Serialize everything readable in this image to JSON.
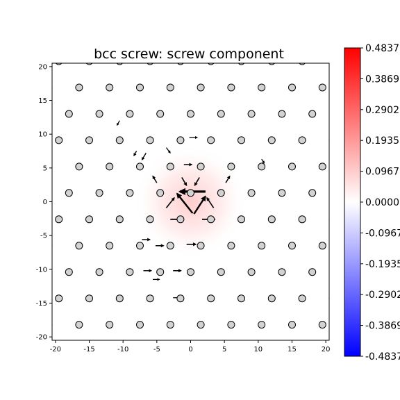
{
  "chart_data": {
    "type": "heatmap",
    "title": "bcc screw: screw component",
    "xlabel": "",
    "ylabel": "",
    "xlim": [
      -20.5,
      20.5
    ],
    "ylim": [
      -20.5,
      20.5
    ],
    "xticks": [
      -20,
      -15,
      -10,
      -5,
      0,
      5,
      10,
      15,
      20
    ],
    "yticks": [
      -20,
      -15,
      -10,
      -5,
      0,
      5,
      10,
      15,
      20
    ],
    "grid": false,
    "colormap": "bwr",
    "colorbar": {
      "range": [
        -0.4837,
        0.4837
      ],
      "ticks": [
        {
          "value": 0.4837,
          "label": "0.4837"
        },
        {
          "value": 0.3869,
          "label": "0.3869"
        },
        {
          "value": 0.2902,
          "label": "0.2902"
        },
        {
          "value": 0.1935,
          "label": "0.1935"
        },
        {
          "value": 0.0967,
          "label": "0.0967"
        },
        {
          "value": 0.0,
          "label": "0.0000"
        },
        {
          "value": -0.0967,
          "label": "-0.0967"
        },
        {
          "value": -0.1935,
          "label": "-0.1935"
        },
        {
          "value": -0.2902,
          "label": "-0.2902"
        },
        {
          "value": -0.3869,
          "label": "-0.3869"
        },
        {
          "value": -0.4837,
          "label": "-0.4837"
        }
      ]
    },
    "field": {
      "description_free": true,
      "peak_value": 0.09,
      "center": [
        0,
        0
      ],
      "decay_radius": 6
    },
    "atoms": {
      "row_spacing": 3.9,
      "column_spacing": 4.5,
      "row_offset_step": 1.5,
      "x_range": [
        -20.5,
        20.5
      ],
      "y_range": [
        -20.5,
        20.5
      ],
      "reference": [
        0,
        1.3
      ]
    },
    "arrows": [
      {
        "from": [
          2.2,
          1.5
        ],
        "to": [
          -1.6,
          1.5
        ],
        "weight": 1.0
      },
      {
        "from": [
          0.3,
          -1.7
        ],
        "to": [
          -2.0,
          1.2
        ],
        "weight": 0.7
      },
      {
        "from": [
          0.5,
          -1.8
        ],
        "to": [
          2.2,
          0.8
        ],
        "weight": 0.7
      },
      {
        "from": [
          -3.0,
          -2.6
        ],
        "to": [
          -1.2,
          -2.6
        ],
        "weight": 0.45
      },
      {
        "from": [
          1.7,
          -2.6
        ],
        "to": [
          3.6,
          -2.6
        ],
        "weight": 0.45
      },
      {
        "from": [
          -3.6,
          -0.9
        ],
        "to": [
          -2.4,
          0.6
        ],
        "weight": 0.35
      },
      {
        "from": [
          3.4,
          -0.9
        ],
        "to": [
          2.4,
          0.6
        ],
        "weight": 0.35
      },
      {
        "from": [
          -1.3,
          3.6
        ],
        "to": [
          -0.6,
          2.4
        ],
        "weight": 0.35
      },
      {
        "from": [
          1.3,
          3.6
        ],
        "to": [
          0.6,
          2.4
        ],
        "weight": 0.35
      },
      {
        "from": [
          -1.0,
          5.5
        ],
        "to": [
          0.2,
          5.5
        ],
        "weight": 0.3
      },
      {
        "from": [
          -5.0,
          2.8
        ],
        "to": [
          -5.6,
          3.8
        ],
        "weight": 0.3
      },
      {
        "from": [
          5.2,
          2.8
        ],
        "to": [
          5.8,
          3.8
        ],
        "weight": 0.3
      },
      {
        "from": [
          -0.2,
          9.5
        ],
        "to": [
          1.0,
          9.5
        ],
        "weight": 0.2
      },
      {
        "from": [
          -7.2,
          -5.6
        ],
        "to": [
          -6.0,
          -5.6
        ],
        "weight": 0.3
      },
      {
        "from": [
          -5.2,
          -6.5
        ],
        "to": [
          -4.0,
          -6.5
        ],
        "weight": 0.3
      },
      {
        "from": [
          -0.6,
          -6.3
        ],
        "to": [
          0.8,
          -6.3
        ],
        "weight": 0.35
      },
      {
        "from": [
          -2.6,
          -10.2
        ],
        "to": [
          -1.4,
          -10.2
        ],
        "weight": 0.3
      },
      {
        "from": [
          -7.0,
          -10.2
        ],
        "to": [
          -5.8,
          -10.2
        ],
        "weight": 0.25
      },
      {
        "from": [
          -2.6,
          -14.2
        ],
        "to": [
          -1.6,
          -14.2
        ],
        "weight": 0.2
      },
      {
        "from": [
          -8.0,
          7.5
        ],
        "to": [
          -8.4,
          6.8
        ],
        "weight": 0.25
      },
      {
        "from": [
          -6.6,
          7.2
        ],
        "to": [
          -7.2,
          6.2
        ],
        "weight": 0.25
      },
      {
        "from": [
          -3.6,
          8.0
        ],
        "to": [
          -3.0,
          7.2
        ],
        "weight": 0.2
      },
      {
        "from": [
          -10.5,
          12.0
        ],
        "to": [
          -10.9,
          11.3
        ],
        "weight": 0.18
      },
      {
        "from": [
          10.5,
          6.3
        ],
        "to": [
          10.9,
          5.7
        ],
        "weight": 0.2
      },
      {
        "from": [
          -5.6,
          -11.5
        ],
        "to": [
          -4.6,
          -11.5
        ],
        "weight": 0.2
      }
    ]
  }
}
